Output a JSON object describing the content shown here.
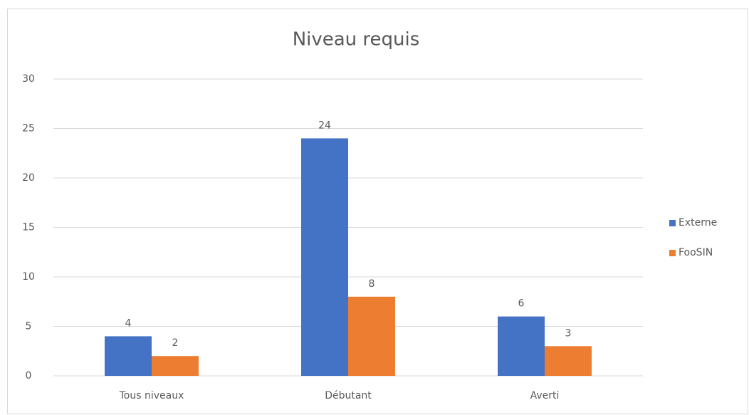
{
  "chart_data": {
    "type": "bar",
    "title": "Niveau requis",
    "categories": [
      "Tous niveaux",
      "Débutant",
      "Averti"
    ],
    "series": [
      {
        "name": "Externe",
        "color": "#4472c4",
        "values": [
          4,
          24,
          6
        ]
      },
      {
        "name": "FooSIN",
        "color": "#ed7d31",
        "values": [
          2,
          8,
          3
        ]
      }
    ],
    "ylim": [
      0,
      30
    ],
    "yticks": [
      0,
      5,
      10,
      15,
      20,
      25,
      30
    ],
    "grid": true,
    "legend": "right"
  }
}
